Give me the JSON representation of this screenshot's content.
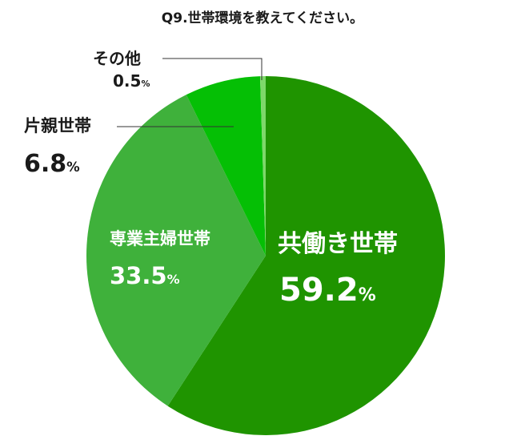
{
  "chart_data": {
    "type": "pie",
    "title": "Q9.世帯環境を教えてください。",
    "categories": [
      "共働き世帯",
      "専業主婦世帯",
      "片親世帯",
      "その他"
    ],
    "values": [
      59.2,
      33.5,
      6.8,
      0.5
    ],
    "value_labels": [
      "59.2",
      "33.5",
      "6.8",
      "0.5"
    ],
    "unit": "%",
    "colors": [
      "#1f9400",
      "#3fb13b",
      "#05bf05",
      "#7ed86a"
    ],
    "start": "12 o'clock",
    "direction": "clockwise",
    "legend": "none"
  }
}
